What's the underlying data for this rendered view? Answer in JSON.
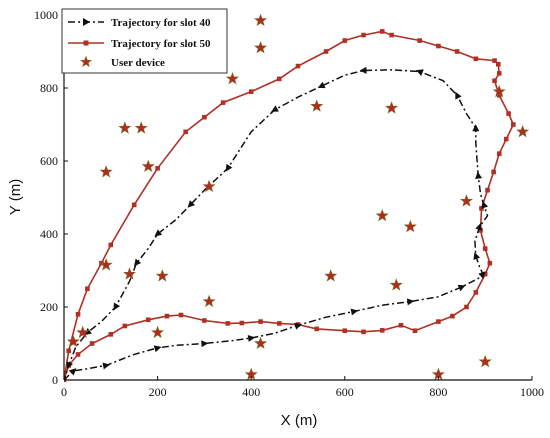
{
  "chart_data": {
    "type": "line",
    "xlabel": "X (m)",
    "ylabel": "Y (m)",
    "xlim": [
      0,
      1000
    ],
    "ylim": [
      0,
      1000
    ],
    "x_ticks": [
      "0",
      "200",
      "400",
      "600",
      "800",
      "1000"
    ],
    "y_ticks": [
      "0",
      "200",
      "400",
      "600",
      "800",
      "1000"
    ],
    "grid": false,
    "legend_position": "top-left",
    "series": [
      {
        "name": "Trajectory for slot 40",
        "style": "dash-dot",
        "marker": "triangle-right",
        "color": "#111111",
        "points": [
          [
            0,
            0
          ],
          [
            20,
            25
          ],
          [
            45,
            30
          ],
          [
            90,
            40
          ],
          [
            150,
            70
          ],
          [
            200,
            88
          ],
          [
            240,
            95
          ],
          [
            300,
            100
          ],
          [
            360,
            108
          ],
          [
            400,
            115
          ],
          [
            450,
            128
          ],
          [
            500,
            150
          ],
          [
            560,
            172
          ],
          [
            620,
            188
          ],
          [
            680,
            205
          ],
          [
            740,
            215
          ],
          [
            800,
            228
          ],
          [
            850,
            255
          ],
          [
            885,
            278
          ],
          [
            895,
            290
          ],
          [
            888,
            310
          ],
          [
            880,
            340
          ],
          [
            878,
            380
          ],
          [
            888,
            420
          ],
          [
            905,
            450
          ],
          [
            897,
            480
          ],
          [
            890,
            510
          ],
          [
            885,
            560
          ],
          [
            880,
            650
          ],
          [
            880,
            690
          ],
          [
            860,
            730
          ],
          [
            840,
            780
          ],
          [
            810,
            820
          ],
          [
            760,
            845
          ],
          [
            700,
            850
          ],
          [
            640,
            848
          ],
          [
            600,
            835
          ],
          [
            550,
            805
          ],
          [
            500,
            775
          ],
          [
            450,
            740
          ],
          [
            400,
            680
          ],
          [
            350,
            580
          ],
          [
            300,
            520
          ],
          [
            270,
            480
          ],
          [
            240,
            440
          ],
          [
            200,
            400
          ],
          [
            180,
            360
          ],
          [
            155,
            320
          ],
          [
            140,
            270
          ],
          [
            110,
            200
          ],
          [
            80,
            160
          ],
          [
            50,
            130
          ],
          [
            25,
            90
          ],
          [
            10,
            40
          ],
          [
            0,
            0
          ]
        ]
      },
      {
        "name": "Trajectory for slot 50",
        "style": "solid",
        "marker": "square",
        "color": "#b03024",
        "points": [
          [
            0,
            0
          ],
          [
            10,
            40
          ],
          [
            30,
            70
          ],
          [
            60,
            100
          ],
          [
            100,
            125
          ],
          [
            130,
            148
          ],
          [
            180,
            165
          ],
          [
            220,
            175
          ],
          [
            250,
            178
          ],
          [
            300,
            163
          ],
          [
            350,
            155
          ],
          [
            380,
            156
          ],
          [
            420,
            160
          ],
          [
            460,
            155
          ],
          [
            500,
            152
          ],
          [
            540,
            140
          ],
          [
            600,
            135
          ],
          [
            640,
            132
          ],
          [
            680,
            136
          ],
          [
            720,
            150
          ],
          [
            750,
            135
          ],
          [
            800,
            160
          ],
          [
            830,
            175
          ],
          [
            860,
            200
          ],
          [
            880,
            240
          ],
          [
            900,
            290
          ],
          [
            910,
            320
          ],
          [
            900,
            360
          ],
          [
            890,
            410
          ],
          [
            892,
            470
          ],
          [
            905,
            520
          ],
          [
            918,
            570
          ],
          [
            930,
            620
          ],
          [
            945,
            660
          ],
          [
            960,
            700
          ],
          [
            950,
            730
          ],
          [
            930,
            780
          ],
          [
            920,
            820
          ],
          [
            930,
            840
          ],
          [
            928,
            865
          ],
          [
            920,
            875
          ],
          [
            880,
            880
          ],
          [
            840,
            900
          ],
          [
            800,
            915
          ],
          [
            760,
            930
          ],
          [
            700,
            945
          ],
          [
            680,
            955
          ],
          [
            640,
            945
          ],
          [
            600,
            930
          ],
          [
            560,
            900
          ],
          [
            500,
            860
          ],
          [
            460,
            825
          ],
          [
            400,
            790
          ],
          [
            340,
            760
          ],
          [
            300,
            720
          ],
          [
            260,
            680
          ],
          [
            200,
            580
          ],
          [
            150,
            480
          ],
          [
            100,
            370
          ],
          [
            80,
            320
          ],
          [
            50,
            250
          ],
          [
            30,
            180
          ],
          [
            10,
            80
          ],
          [
            0,
            0
          ]
        ]
      },
      {
        "name": "User device",
        "style": "none",
        "marker": "star",
        "color": "#b52a20",
        "points": [
          [
            420,
            985
          ],
          [
            420,
            910
          ],
          [
            360,
            825
          ],
          [
            130,
            690
          ],
          [
            165,
            690
          ],
          [
            540,
            750
          ],
          [
            700,
            745
          ],
          [
            930,
            790
          ],
          [
            980,
            680
          ],
          [
            180,
            585
          ],
          [
            90,
            570
          ],
          [
            310,
            530
          ],
          [
            860,
            490
          ],
          [
            680,
            450
          ],
          [
            740,
            420
          ],
          [
            90,
            315
          ],
          [
            140,
            290
          ],
          [
            210,
            285
          ],
          [
            570,
            285
          ],
          [
            710,
            260
          ],
          [
            200,
            130
          ],
          [
            310,
            215
          ],
          [
            20,
            105
          ],
          [
            40,
            130
          ],
          [
            420,
            100
          ],
          [
            400,
            15
          ],
          [
            800,
            15
          ],
          [
            900,
            50
          ]
        ]
      }
    ]
  }
}
